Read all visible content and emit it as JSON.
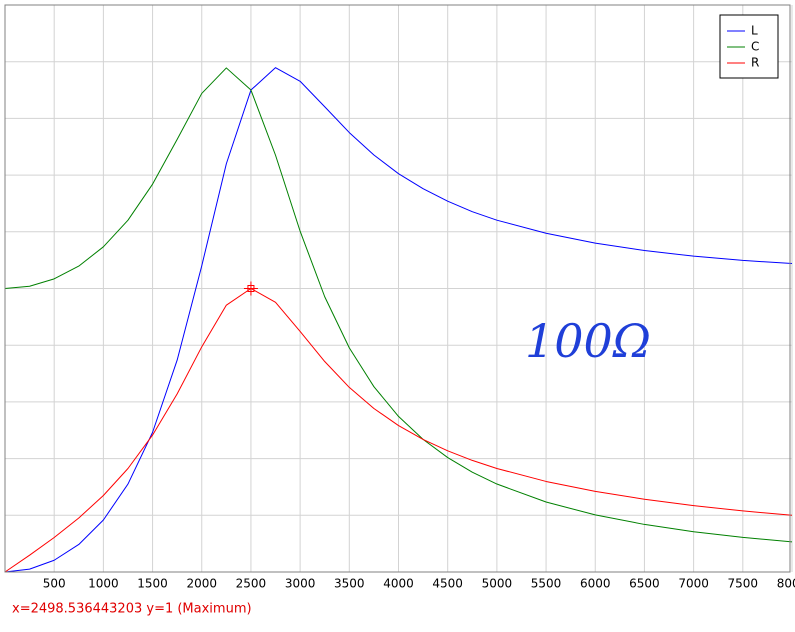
{
  "chart_data": {
    "type": "line",
    "x": [
      0,
      250,
      500,
      750,
      1000,
      1250,
      1500,
      1750,
      2000,
      2250,
      2500,
      2750,
      3000,
      3250,
      3500,
      3750,
      4000,
      4250,
      4500,
      4750,
      5000,
      5500,
      6000,
      6500,
      7000,
      7500,
      8000
    ],
    "series": [
      {
        "name": "L",
        "color": "#0000ff",
        "values": [
          0,
          0.0101,
          0.0414,
          0.0971,
          0.1835,
          0.3103,
          0.4925,
          0.7475,
          1.08,
          1.44,
          1.7,
          1.779,
          1.731,
          1.641,
          1.55,
          1.471,
          1.405,
          1.352,
          1.308,
          1.271,
          1.241,
          1.195,
          1.16,
          1.134,
          1.114,
          1.099,
          1.088
        ]
      },
      {
        "name": "C",
        "color": "#008000",
        "values": [
          1.0,
          1.008,
          1.034,
          1.079,
          1.147,
          1.241,
          1.368,
          1.526,
          1.688,
          1.778,
          1.7,
          1.47,
          1.202,
          0.9709,
          0.7906,
          0.6536,
          0.5489,
          0.4677,
          0.4036,
          0.3522,
          0.3103,
          0.2468,
          0.2014,
          0.1678,
          0.1421,
          0.1221,
          0.1063
        ]
      },
      {
        "name": "R",
        "color": "#ff0000",
        "values": [
          0,
          0.0593,
          0.1216,
          0.1904,
          0.2698,
          0.3651,
          0.4829,
          0.6282,
          0.7943,
          0.9412,
          1.0,
          0.9512,
          0.8486,
          0.7424,
          0.6511,
          0.5767,
          0.5166,
          0.4677,
          0.4274,
          0.3936,
          0.3651,
          0.3194,
          0.2843,
          0.2566,
          0.2341,
          0.2154,
          0.2
        ]
      }
    ],
    "xlim": [
      0,
      8000
    ],
    "xticks": [
      500,
      1000,
      1500,
      2000,
      2500,
      3000,
      3500,
      4000,
      4500,
      5000,
      5500,
      6000,
      6500,
      7000,
      7500,
      8000
    ],
    "ylim": [
      0,
      2
    ],
    "yticks": [
      0.2,
      0.4,
      0.6,
      0.8,
      1.0,
      1.2,
      1.4,
      1.6,
      1.8
    ],
    "grid": true,
    "legend": "top-right",
    "annotation": "100Ω",
    "status": "x=2498.536443203 y=1 (Maximum)"
  }
}
